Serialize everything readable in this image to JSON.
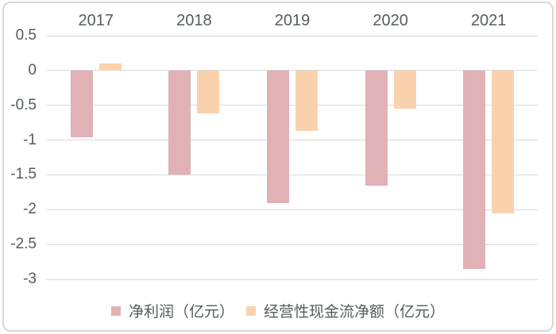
{
  "chart_data": {
    "type": "bar",
    "title": "",
    "categories": [
      "2017",
      "2018",
      "2019",
      "2020",
      "2021"
    ],
    "series": [
      {
        "id": "net-profit",
        "name": "净利润（亿元）",
        "color": "#E0B1B5",
        "values": [
          -0.96,
          -1.5,
          -1.9,
          -1.65,
          -2.85
        ]
      },
      {
        "id": "operating-cash-flow",
        "name": "经营性现金流净额（亿元）",
        "color": "#FBD2AE",
        "values": [
          0.1,
          -0.62,
          -0.87,
          -0.55,
          -2.05
        ]
      }
    ],
    "y_ticks": [
      0.5,
      0,
      -0.5,
      -1,
      -1.5,
      -2,
      -2.5,
      -3
    ],
    "y_tick_labels": [
      "0.5",
      "0",
      "-0.5",
      "-1",
      "-1.5",
      "-2",
      "-2.5",
      "-3"
    ],
    "ylim": [
      -3,
      0.5
    ],
    "grid": true,
    "legend_position": "bottom",
    "category_axis_position": "top"
  },
  "colors": {
    "grid": "#D9D9D9",
    "axis_text": "#555B63",
    "frame_border": "#D8D8D8",
    "background": "#FFFFFF"
  }
}
